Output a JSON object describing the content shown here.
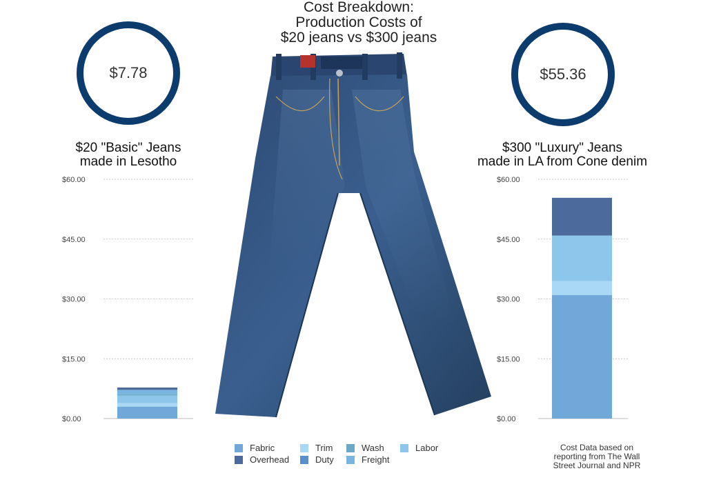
{
  "title": {
    "line1": "Cost Breakdown:",
    "line2": "Production Costs of",
    "line3": "$20 jeans vs $300 jeans"
  },
  "left": {
    "total": "$7.78",
    "label_line1": "$20 \"Basic\" Jeans",
    "label_line2": "made in Lesotho"
  },
  "right": {
    "total": "$55.36",
    "label_line1": "$300 \"Luxury\" Jeans",
    "label_line2": "made in LA from Cone denim"
  },
  "legend": [
    {
      "name": "Fabric",
      "color": "#6fa8d9"
    },
    {
      "name": "Trim",
      "color": "#a8d8f5"
    },
    {
      "name": "Wash",
      "color": "#6aaac8"
    },
    {
      "name": "Labor",
      "color": "#8cc6ea"
    },
    {
      "name": "Overhead",
      "color": "#4c6a9b"
    },
    {
      "name": "Duty",
      "color": "#5b8fcc"
    },
    {
      "name": "Freight",
      "color": "#78b6e0"
    }
  ],
  "note": {
    "line1": "Cost Data based on",
    "line2": "reporting from The Wall",
    "line3": "Street Journal and NPR"
  },
  "chart_data": [
    {
      "type": "bar",
      "stacked": true,
      "categories": [
        "$20 \"Basic\" Jeans"
      ],
      "ylim": [
        0,
        60
      ],
      "yticks": [
        "$0.00",
        "$15.00",
        "$30.00",
        "$45.00",
        "$60.00"
      ],
      "series": [
        {
          "name": "Fabric",
          "values": [
            3.0
          ],
          "color": "#6fa8d9"
        },
        {
          "name": "Trim",
          "values": [
            0.9
          ],
          "color": "#a8d8f5"
        },
        {
          "name": "Labor",
          "values": [
            1.9
          ],
          "color": "#8cc6ea"
        },
        {
          "name": "Wash",
          "values": [
            0.3
          ],
          "color": "#6aaac8"
        },
        {
          "name": "Freight",
          "values": [
            1.1
          ],
          "color": "#78b6e0"
        },
        {
          "name": "Overhead",
          "values": [
            0.58
          ],
          "color": "#4c6a9b"
        }
      ]
    },
    {
      "type": "bar",
      "stacked": true,
      "categories": [
        "$300 \"Luxury\" Jeans"
      ],
      "ylim": [
        0,
        60
      ],
      "yticks": [
        "$0.00",
        "$15.00",
        "$30.00",
        "$45.00",
        "$60.00"
      ],
      "series": [
        {
          "name": "Fabric",
          "values": [
            31.0
          ],
          "color": "#6fa8d9"
        },
        {
          "name": "Trim",
          "values": [
            3.5
          ],
          "color": "#a8d8f5"
        },
        {
          "name": "Labor",
          "values": [
            11.4
          ],
          "color": "#8cc6ea"
        },
        {
          "name": "Overhead",
          "values": [
            9.46
          ],
          "color": "#4c6a9b"
        }
      ]
    }
  ]
}
